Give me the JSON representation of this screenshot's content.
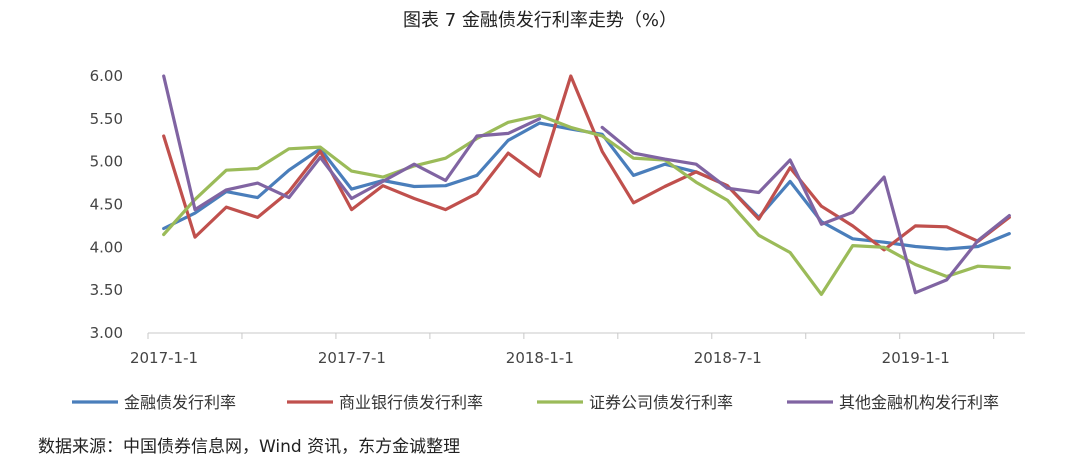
{
  "chart_data": {
    "type": "line",
    "title": "图表 7  金融债发行利率走势（%）",
    "x_tick_labels": [
      "2017-1-1",
      "2017-7-1",
      "2018-1-1",
      "2018-7-1",
      "2019-1-1"
    ],
    "x_tick_index": [
      0,
      6,
      12,
      18,
      24
    ],
    "x": [
      "2017-01",
      "2017-02",
      "2017-03",
      "2017-04",
      "2017-05",
      "2017-06",
      "2017-07",
      "2017-08",
      "2017-09",
      "2017-10",
      "2017-11",
      "2017-12",
      "2018-01",
      "2018-02",
      "2018-03",
      "2018-04",
      "2018-05",
      "2018-06",
      "2018-07",
      "2018-08",
      "2018-09",
      "2018-10",
      "2018-11",
      "2018-12",
      "2019-01",
      "2019-02",
      "2019-03",
      "2019-04"
    ],
    "ylim": [
      3.0,
      6.0
    ],
    "yticks": [
      "3.00",
      "3.50",
      "4.00",
      "4.50",
      "5.00",
      "5.50",
      "6.00"
    ],
    "ytick_values": [
      3.0,
      3.5,
      4.0,
      4.5,
      5.0,
      5.5,
      6.0
    ],
    "legend_position": "bottom",
    "grid": false,
    "series": [
      {
        "name": "金融债发行利率",
        "color": "#4a7ebb",
        "values": [
          4.22,
          4.4,
          4.65,
          4.58,
          4.9,
          5.15,
          4.68,
          4.78,
          4.71,
          4.72,
          4.84,
          5.25,
          5.45,
          5.38,
          5.32,
          4.84,
          4.97,
          4.88,
          4.72,
          4.35,
          4.77,
          4.3,
          4.1,
          4.06,
          4.01,
          3.98,
          4.01,
          4.16
        ]
      },
      {
        "name": "商业银行债发行利率",
        "color": "#c0504d",
        "values": [
          5.3,
          4.12,
          4.47,
          4.35,
          4.65,
          5.12,
          4.44,
          4.72,
          4.57,
          4.44,
          4.63,
          5.1,
          4.83,
          6.0,
          5.12,
          4.52,
          4.71,
          4.88,
          4.72,
          4.33,
          4.93,
          4.48,
          4.25,
          3.97,
          4.25,
          4.24,
          4.07,
          4.35
        ]
      },
      {
        "name": "证券公司债发行利率",
        "color": "#9bbb59",
        "values": [
          4.15,
          4.56,
          4.9,
          4.92,
          5.15,
          5.17,
          4.89,
          4.82,
          4.95,
          5.04,
          5.27,
          5.46,
          5.54,
          5.4,
          5.3,
          5.04,
          5.02,
          4.76,
          4.55,
          4.14,
          3.94,
          3.45,
          4.02,
          4.0,
          3.8,
          3.66,
          3.78,
          3.76
        ]
      },
      {
        "name": "其他金融机构发行利率",
        "color": "#8064a2",
        "values": [
          6.0,
          4.44,
          4.67,
          4.75,
          4.58,
          5.05,
          4.57,
          4.77,
          4.97,
          4.78,
          5.3,
          5.33,
          5.5,
          null,
          5.4,
          5.1,
          5.03,
          4.97,
          4.69,
          4.64,
          5.02,
          4.27,
          4.41,
          4.82,
          3.47,
          3.62,
          4.08,
          4.37
        ]
      }
    ]
  },
  "source_note": "数据来源：中国债券信息网，Wind 资讯，东方金诚整理"
}
